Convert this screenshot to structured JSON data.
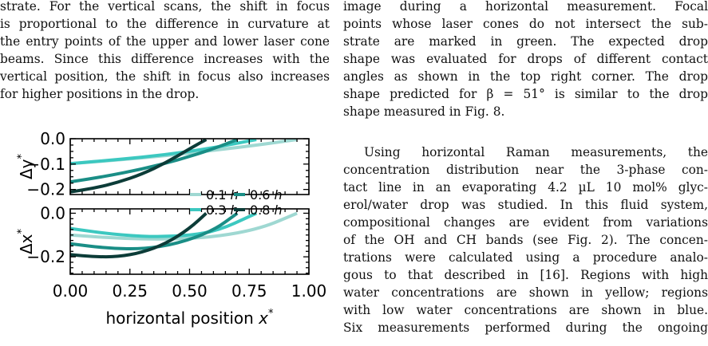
{
  "left_column": {
    "lines": [
      "strate. For the vertical scans, the shift in focus",
      "is proportional to the difference in curvature at",
      "the entry points of the upper and lower laser cone",
      "beams. Since this difference increases with the",
      "vertical position, the shift in focus also increases",
      "for higher positions in the drop."
    ]
  },
  "right_column": {
    "para1": [
      "image during a horizontal measurement. Focal",
      "points whose laser cones do not intersect the sub-",
      "strate are marked in green. The expected drop",
      "shape was evaluated for drops of different contact",
      "angles as shown in the top right corner. The drop",
      "shape predicted for β = 51° is similar to the drop",
      "shape measured in Fig. 8."
    ],
    "para2": [
      "Using horizontal Raman measurements, the",
      "concentration distribution near the 3-phase con-",
      "tact line in an evaporating 4.2 µL 10 mol% glyc-",
      "erol/water drop was studied. In this fluid system,",
      "compositional changes are evident from variations",
      "of the OH and CH bands (see Fig. 2). The concen-",
      "trations were calculated using a procedure analo-",
      "gous to that described in [16]. Regions with high",
      "water concentrations are shown in yellow; regions",
      "with low water concentrations are shown in blue.",
      "Six measurements performed during the ongoing"
    ]
  },
  "chart_data": [
    {
      "type": "line",
      "ylabel": "Δy*",
      "xlim": [
        0,
        1.0
      ],
      "ylim": [
        -0.22,
        0.0
      ],
      "yticks": [
        "0.0",
        "−0.1",
        "−0.2"
      ],
      "legend_placement": "lower-right",
      "series": [
        {
          "name": "0.1 h",
          "color": "#9fd8d2",
          "x": [
            0.0,
            0.2,
            0.4,
            0.6,
            0.8,
            0.95
          ],
          "y": [
            -0.098,
            -0.084,
            -0.067,
            -0.046,
            -0.023,
            -0.003
          ]
        },
        {
          "name": "0.3 h",
          "color": "#3cc8c0",
          "x": [
            0.0,
            0.2,
            0.4,
            0.6,
            0.78
          ],
          "y": [
            -0.098,
            -0.082,
            -0.063,
            -0.036,
            -0.003
          ]
        },
        {
          "name": "0.6 h",
          "color": "#1a8e86",
          "x": [
            0.0,
            0.15,
            0.3,
            0.45,
            0.6,
            0.7
          ],
          "y": [
            -0.17,
            -0.148,
            -0.12,
            -0.085,
            -0.04,
            -0.003
          ]
        },
        {
          "name": "0.8 h",
          "color": "#0c3c38",
          "x": [
            0.0,
            0.1,
            0.2,
            0.3,
            0.4,
            0.5,
            0.57
          ],
          "y": [
            -0.21,
            -0.195,
            -0.172,
            -0.14,
            -0.095,
            -0.04,
            -0.003
          ]
        }
      ]
    },
    {
      "type": "line",
      "ylabel": "Δx*",
      "xlabel": "horizontal position x*",
      "xlim": [
        0,
        1.0
      ],
      "ylim": [
        -0.28,
        0.02
      ],
      "xticks": [
        "0.00",
        "0.25",
        "0.50",
        "0.75",
        "1.00"
      ],
      "yticks": [
        "0.0",
        "−0.2"
      ],
      "series": [
        {
          "name": "0.1 h",
          "color": "#9fd8d2",
          "x": [
            0.0,
            0.2,
            0.4,
            0.6,
            0.8,
            0.95
          ],
          "y": [
            -0.1,
            -0.115,
            -0.12,
            -0.11,
            -0.07,
            0.0
          ]
        },
        {
          "name": "0.3 h",
          "color": "#3cc8c0",
          "x": [
            0.0,
            0.2,
            0.4,
            0.6,
            0.78
          ],
          "y": [
            -0.07,
            -0.1,
            -0.11,
            -0.09,
            0.0
          ]
        },
        {
          "name": "0.6 h",
          "color": "#1a8e86",
          "x": [
            0.0,
            0.15,
            0.3,
            0.45,
            0.6,
            0.7
          ],
          "y": [
            -0.14,
            -0.16,
            -0.165,
            -0.14,
            -0.08,
            0.0
          ]
        },
        {
          "name": "0.8 h",
          "color": "#0c3c38",
          "x": [
            0.0,
            0.1,
            0.2,
            0.3,
            0.4,
            0.5,
            0.57
          ],
          "y": [
            -0.19,
            -0.2,
            -0.2,
            -0.18,
            -0.14,
            -0.07,
            0.0
          ]
        }
      ]
    }
  ]
}
